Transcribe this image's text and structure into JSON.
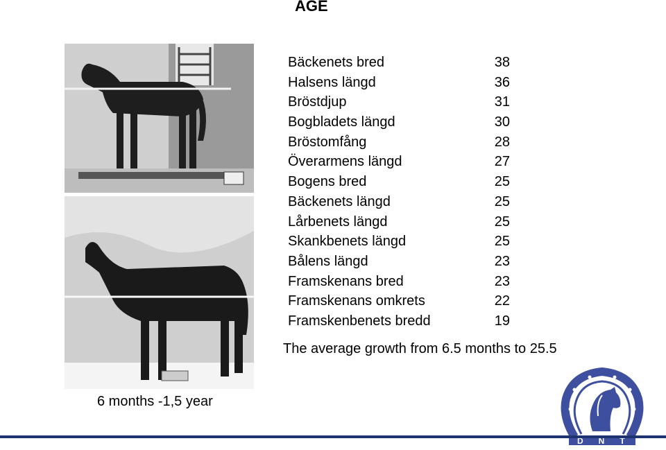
{
  "page": {
    "title": "AGE"
  },
  "photos": [
    {
      "label": "horse-photo-6-months"
    },
    {
      "label": "horse-photo-1-5-year"
    }
  ],
  "caption": "6 months -1,5 year",
  "measurements": [
    {
      "name": "Bäckenets bred",
      "value": "38"
    },
    {
      "name": "Halsens längd",
      "value": "36"
    },
    {
      "name": "Bröstdjup",
      "value": "31"
    },
    {
      "name": "Bogbladets längd",
      "value": "30"
    },
    {
      "name": "Bröstomfång",
      "value": "28"
    },
    {
      "name": "Överarmens längd",
      "value": "27"
    },
    {
      "name": "Bogens bred",
      "value": "25"
    },
    {
      "name": "Bäckenets längd",
      "value": "25"
    },
    {
      "name": "Lårbenets längd",
      "value": "25"
    },
    {
      "name": "Skankbenets längd",
      "value": "25"
    },
    {
      "name": "Bålens längd",
      "value": "23"
    },
    {
      "name": "Framskenans bred",
      "value": "23"
    },
    {
      "name": "Framskenans omkrets",
      "value": "22"
    },
    {
      "name": "Framskenbenets bredd",
      "value": "19"
    }
  ],
  "note": "The average growth from 6.5 months to 25.5",
  "logo": {
    "icon": "horse-horseshoe-logo",
    "letters": "DNT"
  },
  "colors": {
    "accent": "#1f3370",
    "logo": "#3d4f9e"
  }
}
